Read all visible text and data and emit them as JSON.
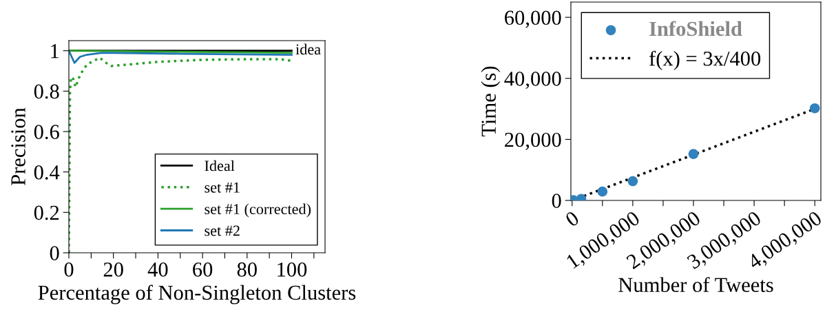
{
  "chart_data": [
    {
      "type": "line",
      "xlabel": "Percentage of Non-Singleton Clusters",
      "ylabel": "Precision",
      "xlim": [
        0,
        115
      ],
      "ylim": [
        0,
        1.05
      ],
      "xticks": [
        0,
        {
          "value": 10,
          "label": null
        },
        20,
        {
          "value": 30,
          "label": null
        },
        40,
        {
          "value": 50,
          "label": null
        },
        60,
        {
          "value": 70,
          "label": null
        },
        80,
        {
          "value": 90,
          "label": null
        },
        100,
        {
          "value": 110,
          "label": null
        }
      ],
      "yticks": [
        0,
        0.2,
        0.4,
        0.6,
        0.8,
        1
      ],
      "grid": false,
      "legend": "bottom right",
      "annotations": [
        {
          "text": "idea",
          "x": 100,
          "y": 1
        }
      ],
      "series": [
        {
          "name": "Ideal",
          "color": "#000000",
          "line_style": "solid",
          "x": [
            0,
            100
          ],
          "values": [
            1,
            1
          ]
        },
        {
          "name": "set #1",
          "color": "#2ca02c",
          "line_style": "dotted",
          "x": [
            0,
            0.5,
            1,
            2,
            3,
            5,
            8,
            11,
            14,
            16,
            19,
            25,
            40,
            60,
            80,
            95,
            100
          ],
          "values": [
            0,
            0.8,
            0.87,
            0.86,
            0.82,
            0.88,
            0.93,
            0.95,
            0.965,
            0.945,
            0.925,
            0.93,
            0.945,
            0.955,
            0.958,
            0.958,
            0.95
          ]
        },
        {
          "name": "set #1 (corrected)",
          "color": "#2ca02c",
          "line_style": "solid",
          "x": [
            0,
            50,
            100
          ],
          "values": [
            1,
            0.995,
            0.99
          ]
        },
        {
          "name": "set #2",
          "color": "#1f77b4",
          "line_style": "solid",
          "x": [
            0,
            2.5,
            5,
            8,
            15,
            50,
            100
          ],
          "values": [
            1,
            0.94,
            0.97,
            0.98,
            0.99,
            0.985,
            0.98
          ]
        }
      ]
    },
    {
      "type": "scatter",
      "xlabel": "Number of Tweets",
      "ylabel": "Time (s)",
      "xlim": [
        -20000,
        4100000
      ],
      "ylim": [
        0,
        65000
      ],
      "xticks": [
        0,
        {
          "value": 500000,
          "label": null
        },
        {
          "value": 1000000,
          "label": "1,000,000"
        },
        {
          "value": 1500000,
          "label": null
        },
        {
          "value": 2000000,
          "label": "2,000,000"
        },
        {
          "value": 2500000,
          "label": null
        },
        {
          "value": 3000000,
          "label": "3,000,000"
        },
        {
          "value": 3500000,
          "label": null
        },
        {
          "value": 4000000,
          "label": "4,000,000"
        }
      ],
      "yticks": [
        0,
        {
          "value": 20000,
          "label": "20,000"
        },
        {
          "value": 40000,
          "label": "40,000"
        },
        {
          "value": 60000,
          "label": "60,000"
        }
      ],
      "grid": false,
      "legend": "top left",
      "series": [
        {
          "name": "InfoShield",
          "type": "scatter",
          "marker": "circle",
          "color": "#3182bd",
          "x": [
            20000,
            150000,
            500000,
            1000000,
            2000000,
            4000000
          ],
          "values": [
            100,
            500,
            2900,
            6300,
            15200,
            30200
          ]
        },
        {
          "name": "f(x) = 3x/400",
          "type": "line",
          "line_style": "dotted",
          "color": "#000000",
          "x": [
            0,
            4000000
          ],
          "values": [
            0,
            30000
          ]
        }
      ]
    }
  ]
}
